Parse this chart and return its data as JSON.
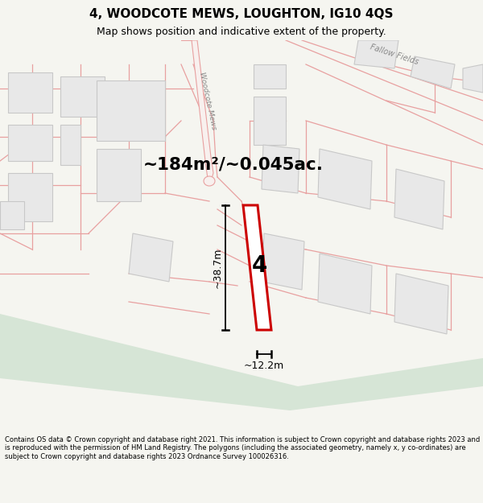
{
  "title": "4, WOODCOTE MEWS, LOUGHTON, IG10 4QS",
  "subtitle": "Map shows position and indicative extent of the property.",
  "area_text": "~184m²/~0.045ac.",
  "dim_height": "~38.7m",
  "dim_width": "~12.2m",
  "plot_number": "4",
  "footer": "Contains OS data © Crown copyright and database right 2021. This information is subject to Crown copyright and database rights 2023 and is reproduced with the permission of HM Land Registry. The polygons (including the associated geometry, namely x, y co-ordinates) are subject to Crown copyright and database rights 2023 Ordnance Survey 100026316.",
  "bg_color": "#f5f5f0",
  "map_bg": "#ffffff",
  "green_color": "#d6e5d6",
  "building_fill": "#e8e8e8",
  "building_edge": "#c8c8c8",
  "road_line_color": "#e8a0a0",
  "plot_fill": "#ffffff",
  "plot_edge": "#cc0000",
  "dim_color": "#000000",
  "title_color": "#000000",
  "footer_color": "#000000",
  "road_label_color": "#888888",
  "woodcote_label": "Woodcote Mews",
  "fallow_label": "Fallow Fields"
}
